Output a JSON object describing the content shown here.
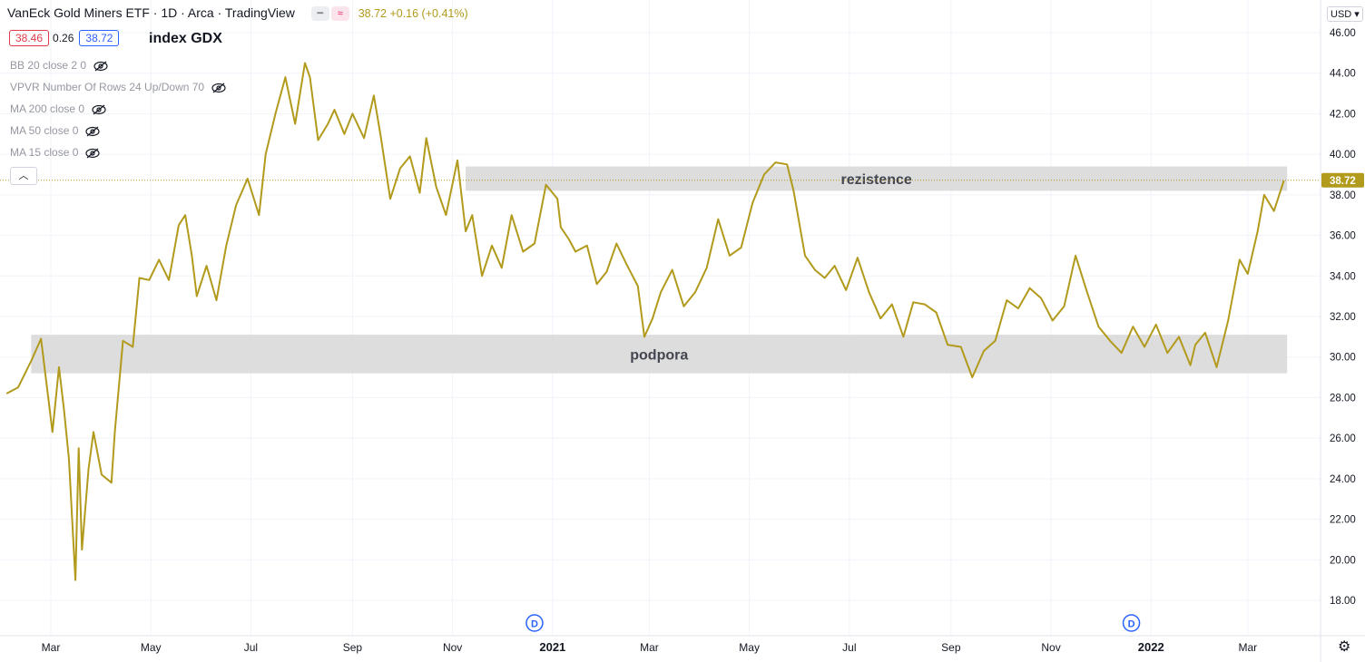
{
  "legend": {
    "title": "VanEck Gold Miners ETF · 1D · Arca · TradingView",
    "price_text": "38.72 +0.16 (+0.41%)"
  },
  "boxes": {
    "bid": "38.46",
    "spread": "0.26",
    "ask": "38.72"
  },
  "index_label": "index GDX",
  "indicators": [
    "BB 20 close 2 0",
    "VPVR Number Of Rows 24 Up/Down 70",
    "MA 200 close 0",
    "MA 50 close 0",
    "MA 15 close 0"
  ],
  "currency": "USD",
  "price_tag": "38.72",
  "colors": {
    "line": "#b19a1c",
    "zone": "#d9d9d9",
    "tag": "#b19a1c",
    "dividend": "#2962ff"
  },
  "chart_data": {
    "type": "line",
    "title": "VanEck Gold Miners ETF · 1D · Arca",
    "ylim": [
      17,
      46.6
    ],
    "y_ticks": [
      "46.00",
      "44.00",
      "42.00",
      "40.00",
      "38.00",
      "36.00",
      "34.00",
      "32.00",
      "30.00",
      "28.00",
      "26.00",
      "24.00",
      "22.00",
      "20.00",
      "18.00"
    ],
    "x_ticks": [
      "Mar",
      "May",
      "Jul",
      "Sep",
      "Nov",
      "2021",
      "Mar",
      "May",
      "Jul",
      "Sep",
      "Nov",
      "2022",
      "Mar"
    ],
    "bold_x_ticks": [
      "2021",
      "2022"
    ],
    "series": [
      {
        "x": [
          "2020-02-03",
          "2020-02-10",
          "2020-02-18",
          "2020-02-24",
          "2020-03-02",
          "2020-03-06",
          "2020-03-09",
          "2020-03-12",
          "2020-03-16",
          "2020-03-18",
          "2020-03-20",
          "2020-03-24",
          "2020-03-27",
          "2020-04-01",
          "2020-04-07",
          "2020-04-09",
          "2020-04-14",
          "2020-04-20",
          "2020-04-24",
          "2020-04-30",
          "2020-05-06",
          "2020-05-12",
          "2020-05-18",
          "2020-05-22",
          "2020-05-26",
          "2020-05-29",
          "2020-06-04",
          "2020-06-10",
          "2020-06-16",
          "2020-06-22",
          "2020-06-29",
          "2020-07-06",
          "2020-07-10",
          "2020-07-16",
          "2020-07-22",
          "2020-07-28",
          "2020-08-03",
          "2020-08-06",
          "2020-08-11",
          "2020-08-17",
          "2020-08-21",
          "2020-08-27",
          "2020-09-01",
          "2020-09-08",
          "2020-09-14",
          "2020-09-18",
          "2020-09-24",
          "2020-09-30",
          "2020-10-06",
          "2020-10-12",
          "2020-10-16",
          "2020-10-22",
          "2020-10-28",
          "2020-11-04",
          "2020-11-09",
          "2020-11-13",
          "2020-11-19",
          "2020-11-25",
          "2020-12-01",
          "2020-12-07",
          "2020-12-14",
          "2020-12-21",
          "2020-12-28",
          "2021-01-04",
          "2021-01-06",
          "2021-01-11",
          "2021-01-15",
          "2021-01-22",
          "2021-01-28",
          "2021-02-03",
          "2021-02-09",
          "2021-02-15",
          "2021-02-22",
          "2021-02-26",
          "2021-03-03",
          "2021-03-08",
          "2021-03-15",
          "2021-03-22",
          "2021-03-29",
          "2021-04-05",
          "2021-04-12",
          "2021-04-19",
          "2021-04-26",
          "2021-05-03",
          "2021-05-10",
          "2021-05-17",
          "2021-05-24",
          "2021-05-28",
          "2021-06-04",
          "2021-06-10",
          "2021-06-16",
          "2021-06-22",
          "2021-06-29",
          "2021-07-06",
          "2021-07-13",
          "2021-07-20",
          "2021-07-27",
          "2021-08-03",
          "2021-08-09",
          "2021-08-16",
          "2021-08-23",
          "2021-08-30",
          "2021-09-07",
          "2021-09-14",
          "2021-09-21",
          "2021-09-28",
          "2021-10-05",
          "2021-10-12",
          "2021-10-19",
          "2021-10-26",
          "2021-11-02",
          "2021-11-09",
          "2021-11-16",
          "2021-11-23",
          "2021-11-30",
          "2021-12-07",
          "2021-12-14",
          "2021-12-21",
          "2021-12-28",
          "2022-01-04",
          "2022-01-11",
          "2022-01-18",
          "2022-01-25",
          "2022-01-28",
          "2022-02-03",
          "2022-02-10",
          "2022-02-17",
          "2022-02-24",
          "2022-03-01",
          "2022-03-07",
          "2022-03-11",
          "2022-03-17",
          "2022-03-23"
        ],
        "y": [
          28.2,
          28.5,
          29.8,
          30.9,
          26.3,
          29.5,
          27.4,
          25.0,
          19.0,
          25.5,
          20.5,
          24.5,
          26.3,
          24.2,
          23.8,
          26.3,
          30.8,
          30.5,
          33.9,
          33.8,
          34.8,
          33.8,
          36.5,
          37.0,
          35.0,
          33.0,
          34.5,
          32.8,
          35.5,
          37.5,
          38.8,
          37.0,
          40.0,
          42.0,
          43.8,
          41.5,
          44.5,
          43.8,
          40.7,
          41.5,
          42.2,
          41.0,
          42.0,
          40.8,
          42.9,
          41.0,
          37.8,
          39.3,
          39.9,
          38.1,
          40.8,
          38.4,
          37.0,
          39.7,
          36.2,
          37.0,
          34.0,
          35.5,
          34.4,
          37.0,
          35.2,
          35.6,
          38.5,
          37.8,
          36.4,
          35.8,
          35.2,
          35.5,
          33.6,
          34.2,
          35.6,
          34.6,
          33.5,
          31.0,
          31.9,
          33.2,
          34.3,
          32.5,
          33.2,
          34.4,
          36.8,
          35.0,
          35.4,
          37.6,
          39.0,
          39.6,
          39.5,
          38.2,
          35.0,
          34.3,
          33.9,
          34.5,
          33.3,
          34.9,
          33.2,
          31.9,
          32.6,
          31.0,
          32.7,
          32.6,
          32.2,
          30.6,
          30.5,
          29.0,
          30.3,
          30.8,
          32.8,
          32.4,
          33.4,
          32.9,
          31.8,
          32.5,
          35.0,
          33.2,
          31.5,
          30.8,
          30.2,
          31.5,
          30.5,
          31.6,
          30.2,
          31.0,
          29.6,
          30.6,
          31.2,
          29.5,
          31.8,
          34.8,
          34.1,
          36.2,
          38.0,
          37.2,
          38.7
        ]
      }
    ],
    "annotations": [
      {
        "text": "rezistence",
        "y_range": [
          38.2,
          39.4
        ],
        "x_from": "2020-11-09",
        "x_to": "2022-03-25"
      },
      {
        "text": "podpora",
        "y_range": [
          29.2,
          31.1
        ],
        "x_from": "2020-02-18",
        "x_to": "2022-03-25"
      }
    ],
    "dividend_markers": [
      "2020-12-21",
      "2021-12-20"
    ],
    "last_price": 38.72
  }
}
